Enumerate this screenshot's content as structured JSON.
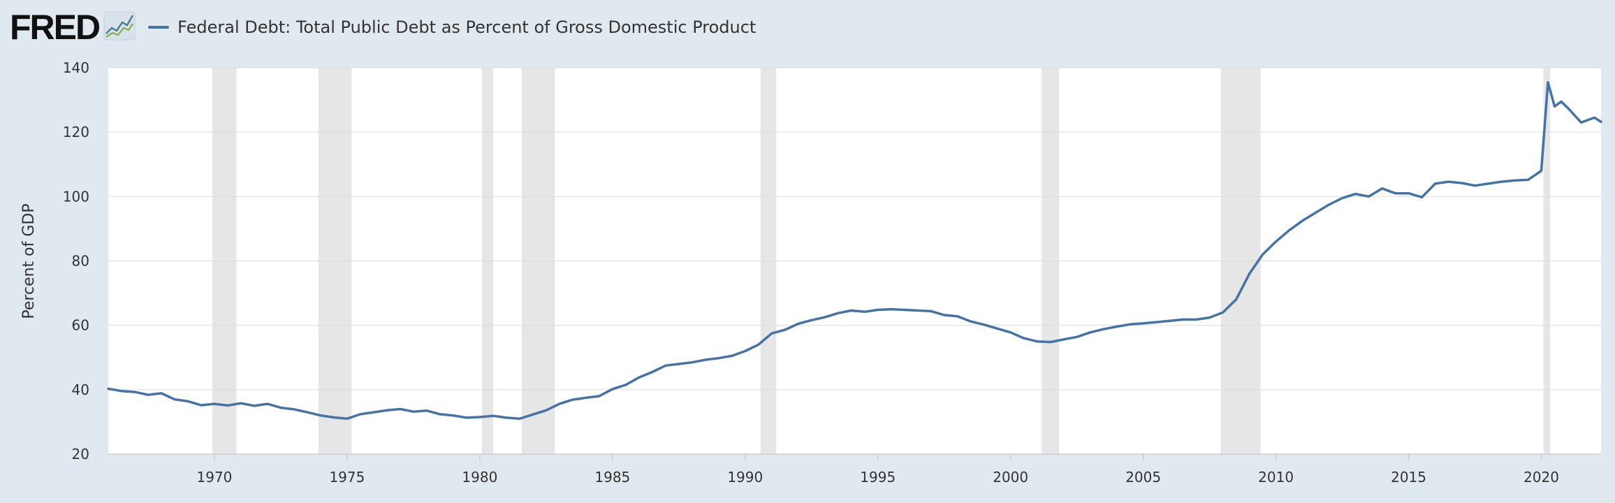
{
  "header": {
    "logo_text": "FRED",
    "logo_icon": "line-graph-icon",
    "legend_label": "Federal Debt: Total Public Debt as Percent of Gross Domestic Product",
    "legend_color": "#4572a7"
  },
  "colors": {
    "background": "#e1e9f0",
    "plot_area": "#ffffff",
    "recession_band": "#e6e6e6",
    "series": "#4572a7",
    "grid": "#dddddd"
  },
  "chart_data": {
    "type": "line",
    "title": "",
    "xlabel": "",
    "ylabel": "Percent of GDP",
    "xlim": [
      1966.0,
      2022.25
    ],
    "ylim": [
      20,
      140
    ],
    "x_ticks": [
      1970,
      1975,
      1980,
      1985,
      1990,
      1995,
      2000,
      2005,
      2010,
      2015,
      2020
    ],
    "y_ticks": [
      20,
      40,
      60,
      80,
      100,
      120,
      140
    ],
    "grid": "horizontal",
    "legend": "top-left",
    "recessions": [
      [
        1969.92,
        1970.83
      ],
      [
        1973.92,
        1975.17
      ],
      [
        1980.08,
        1980.5
      ],
      [
        1981.58,
        1982.83
      ],
      [
        1990.58,
        1991.17
      ],
      [
        2001.17,
        2001.83
      ],
      [
        2007.92,
        2009.42
      ],
      [
        2020.08,
        2020.33
      ]
    ],
    "series": [
      {
        "name": "Federal Debt: Total Public Debt as Percent of Gross Domestic Product",
        "points": [
          [
            1966.0,
            40.3
          ],
          [
            1966.5,
            39.6
          ],
          [
            1967.0,
            39.3
          ],
          [
            1967.5,
            38.4
          ],
          [
            1968.0,
            38.9
          ],
          [
            1968.5,
            37.0
          ],
          [
            1969.0,
            36.4
          ],
          [
            1969.5,
            35.2
          ],
          [
            1970.0,
            35.6
          ],
          [
            1970.5,
            35.1
          ],
          [
            1971.0,
            35.8
          ],
          [
            1971.5,
            35.0
          ],
          [
            1972.0,
            35.6
          ],
          [
            1972.5,
            34.4
          ],
          [
            1973.0,
            33.9
          ],
          [
            1973.5,
            33.0
          ],
          [
            1974.0,
            32.0
          ],
          [
            1974.5,
            31.4
          ],
          [
            1975.0,
            31.0
          ],
          [
            1975.5,
            32.4
          ],
          [
            1976.0,
            33.0
          ],
          [
            1976.5,
            33.6
          ],
          [
            1977.0,
            34.0
          ],
          [
            1977.5,
            33.2
          ],
          [
            1978.0,
            33.5
          ],
          [
            1978.5,
            32.4
          ],
          [
            1979.0,
            32.0
          ],
          [
            1979.5,
            31.3
          ],
          [
            1980.0,
            31.5
          ],
          [
            1980.5,
            31.9
          ],
          [
            1981.0,
            31.3
          ],
          [
            1981.5,
            31.0
          ],
          [
            1982.0,
            32.3
          ],
          [
            1982.5,
            33.6
          ],
          [
            1983.0,
            35.6
          ],
          [
            1983.5,
            36.9
          ],
          [
            1984.0,
            37.5
          ],
          [
            1984.5,
            38.0
          ],
          [
            1985.0,
            40.2
          ],
          [
            1985.5,
            41.5
          ],
          [
            1986.0,
            43.8
          ],
          [
            1986.5,
            45.5
          ],
          [
            1987.0,
            47.5
          ],
          [
            1987.5,
            48.0
          ],
          [
            1988.0,
            48.5
          ],
          [
            1988.5,
            49.3
          ],
          [
            1989.0,
            49.8
          ],
          [
            1989.5,
            50.5
          ],
          [
            1990.0,
            52.0
          ],
          [
            1990.5,
            54.0
          ],
          [
            1991.0,
            57.5
          ],
          [
            1991.5,
            58.6
          ],
          [
            1992.0,
            60.5
          ],
          [
            1992.5,
            61.6
          ],
          [
            1993.0,
            62.5
          ],
          [
            1993.5,
            63.8
          ],
          [
            1994.0,
            64.6
          ],
          [
            1994.5,
            64.2
          ],
          [
            1995.0,
            64.8
          ],
          [
            1995.5,
            65.0
          ],
          [
            1996.0,
            64.8
          ],
          [
            1996.5,
            64.6
          ],
          [
            1997.0,
            64.4
          ],
          [
            1997.5,
            63.2
          ],
          [
            1998.0,
            62.8
          ],
          [
            1998.5,
            61.2
          ],
          [
            1999.0,
            60.2
          ],
          [
            1999.5,
            59.0
          ],
          [
            2000.0,
            57.8
          ],
          [
            2000.5,
            56.0
          ],
          [
            2001.0,
            55.0
          ],
          [
            2001.5,
            54.8
          ],
          [
            2002.0,
            55.6
          ],
          [
            2002.5,
            56.4
          ],
          [
            2003.0,
            57.8
          ],
          [
            2003.5,
            58.8
          ],
          [
            2004.0,
            59.6
          ],
          [
            2004.5,
            60.3
          ],
          [
            2005.0,
            60.6
          ],
          [
            2005.5,
            61.0
          ],
          [
            2006.0,
            61.4
          ],
          [
            2006.5,
            61.8
          ],
          [
            2007.0,
            61.8
          ],
          [
            2007.5,
            62.4
          ],
          [
            2008.0,
            64.0
          ],
          [
            2008.5,
            68.0
          ],
          [
            2009.0,
            76.0
          ],
          [
            2009.5,
            82.0
          ],
          [
            2010.0,
            86.0
          ],
          [
            2010.5,
            89.5
          ],
          [
            2011.0,
            92.5
          ],
          [
            2011.5,
            95.0
          ],
          [
            2012.0,
            97.5
          ],
          [
            2012.5,
            99.5
          ],
          [
            2013.0,
            100.8
          ],
          [
            2013.5,
            100.0
          ],
          [
            2014.0,
            102.5
          ],
          [
            2014.5,
            101.0
          ],
          [
            2015.0,
            101.0
          ],
          [
            2015.5,
            99.8
          ],
          [
            2016.0,
            104.0
          ],
          [
            2016.5,
            104.6
          ],
          [
            2017.0,
            104.2
          ],
          [
            2017.5,
            103.4
          ],
          [
            2018.0,
            104.0
          ],
          [
            2018.5,
            104.6
          ],
          [
            2019.0,
            105.0
          ],
          [
            2019.5,
            105.2
          ],
          [
            2020.0,
            108.0
          ],
          [
            2020.25,
            135.5
          ],
          [
            2020.5,
            128.0
          ],
          [
            2020.75,
            129.5
          ],
          [
            2021.0,
            127.5
          ],
          [
            2021.5,
            123.0
          ],
          [
            2022.0,
            124.5
          ],
          [
            2022.25,
            123.2
          ]
        ]
      }
    ]
  }
}
